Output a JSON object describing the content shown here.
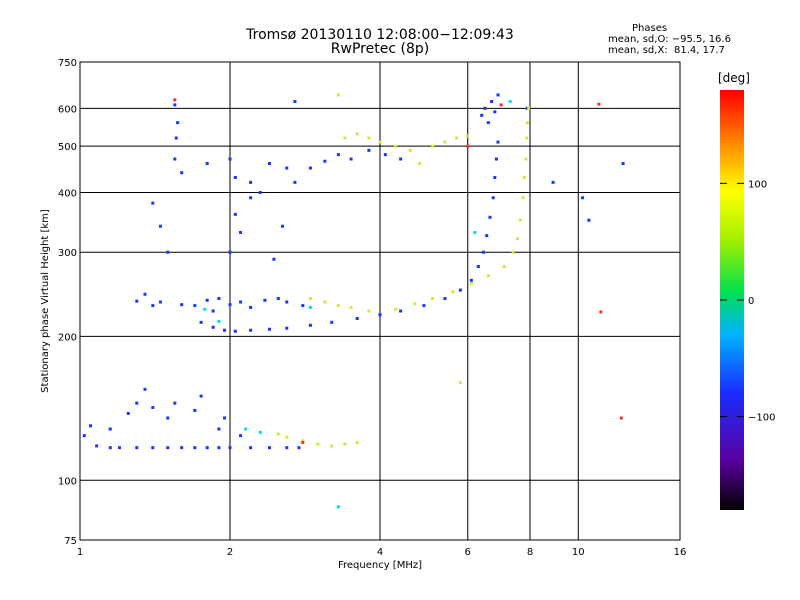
{
  "header": {
    "title_line1": "Tromsø 20130110 12:08:00−12:09:43",
    "title_line2": "RwPretec (8p)"
  },
  "phases": {
    "title": "Phases",
    "line_o": "mean, sd,O: −95.5, 16.6",
    "line_x": "mean, sd,X:  81.4, 17.7"
  },
  "colorbar": {
    "label": "[deg]",
    "ticks": [
      "100",
      "0",
      "−100"
    ],
    "tick_values": [
      100,
      0,
      -100
    ],
    "range": [
      -180,
      180
    ]
  },
  "chart_data": {
    "type": "scatter",
    "xlabel": "Frequency [MHz]",
    "ylabel": "Stationary phase Virtual Height [km]",
    "x_scale": "log",
    "y_scale": "log",
    "xlim": [
      1,
      16
    ],
    "ylim": [
      75,
      750
    ],
    "x_ticks": [
      1,
      2,
      4,
      6,
      8,
      10,
      16
    ],
    "x_tick_labels": [
      "1",
      "2",
      "4",
      "6",
      "8",
      "10",
      "16"
    ],
    "y_ticks": [
      75,
      100,
      200,
      300,
      400,
      500,
      600,
      750
    ],
    "y_tick_labels": [
      "75",
      "100",
      "200",
      "300",
      "400",
      "500",
      "600",
      "750"
    ],
    "grid": true,
    "series": [
      {
        "color": "#1a35ff",
        "points": [
          [
            1.08,
            118
          ],
          [
            1.15,
            117
          ],
          [
            1.2,
            117
          ],
          [
            1.3,
            117
          ],
          [
            1.4,
            117
          ],
          [
            1.5,
            117
          ],
          [
            1.6,
            117
          ],
          [
            1.7,
            117
          ],
          [
            1.8,
            117
          ],
          [
            1.9,
            117
          ],
          [
            2.0,
            117
          ],
          [
            2.2,
            117
          ],
          [
            2.4,
            117
          ],
          [
            2.6,
            117
          ],
          [
            2.75,
            117
          ],
          [
            1.02,
            124
          ],
          [
            1.05,
            130
          ],
          [
            1.15,
            128
          ],
          [
            1.25,
            138
          ],
          [
            1.3,
            145
          ],
          [
            1.35,
            155
          ],
          [
            1.4,
            142
          ],
          [
            1.5,
            135
          ],
          [
            1.55,
            145
          ],
          [
            1.7,
            140
          ],
          [
            1.75,
            150
          ],
          [
            1.9,
            128
          ],
          [
            1.95,
            135
          ],
          [
            2.1,
            124
          ],
          [
            1.3,
            237
          ],
          [
            1.35,
            245
          ],
          [
            1.4,
            232
          ],
          [
            1.45,
            236
          ],
          [
            1.6,
            233
          ],
          [
            1.7,
            232
          ],
          [
            1.8,
            238
          ],
          [
            1.85,
            226
          ],
          [
            1.9,
            240
          ],
          [
            2.0,
            233
          ],
          [
            2.1,
            236
          ],
          [
            2.2,
            230
          ],
          [
            2.35,
            238
          ],
          [
            2.5,
            240
          ],
          [
            2.6,
            236
          ],
          [
            2.8,
            232
          ],
          [
            1.75,
            214
          ],
          [
            1.85,
            209
          ],
          [
            1.95,
            206
          ],
          [
            2.05,
            205
          ],
          [
            2.2,
            206
          ],
          [
            2.4,
            207
          ],
          [
            2.6,
            208
          ],
          [
            2.9,
            211
          ],
          [
            3.2,
            214
          ],
          [
            3.6,
            218
          ],
          [
            4.0,
            222
          ],
          [
            4.4,
            226
          ],
          [
            4.9,
            232
          ],
          [
            5.4,
            240
          ],
          [
            5.8,
            250
          ],
          [
            6.1,
            262
          ],
          [
            6.3,
            280
          ],
          [
            6.45,
            300
          ],
          [
            6.55,
            325
          ],
          [
            6.65,
            355
          ],
          [
            6.75,
            390
          ],
          [
            6.8,
            430
          ],
          [
            6.85,
            470
          ],
          [
            6.9,
            510
          ],
          [
            1.55,
            470
          ],
          [
            1.56,
            520
          ],
          [
            1.57,
            560
          ],
          [
            1.6,
            440
          ],
          [
            1.8,
            460
          ],
          [
            2.0,
            470
          ],
          [
            2.05,
            430
          ],
          [
            2.2,
            420
          ],
          [
            2.4,
            460
          ],
          [
            2.6,
            450
          ],
          [
            2.7,
            420
          ],
          [
            2.9,
            450
          ],
          [
            3.1,
            465
          ],
          [
            3.3,
            480
          ],
          [
            3.5,
            470
          ],
          [
            3.8,
            490
          ],
          [
            4.1,
            480
          ],
          [
            4.4,
            470
          ],
          [
            2.0,
            300
          ],
          [
            2.05,
            360
          ],
          [
            2.1,
            330
          ],
          [
            2.2,
            390
          ],
          [
            2.3,
            400
          ],
          [
            2.45,
            290
          ],
          [
            2.55,
            340
          ],
          [
            1.4,
            380
          ],
          [
            1.5,
            300
          ],
          [
            1.45,
            340
          ],
          [
            6.4,
            580
          ],
          [
            6.5,
            600
          ],
          [
            6.6,
            560
          ],
          [
            6.7,
            620
          ],
          [
            6.8,
            590
          ],
          [
            6.9,
            640
          ],
          [
            2.7,
            620
          ],
          [
            1.55,
            610
          ],
          [
            7.9,
            600
          ],
          [
            8.9,
            420
          ],
          [
            10.2,
            390
          ],
          [
            10.5,
            350
          ],
          [
            12.3,
            460
          ]
        ]
      },
      {
        "color": "#c8f032",
        "points": [
          [
            3.4,
            520
          ],
          [
            3.6,
            530
          ],
          [
            3.8,
            520
          ],
          [
            4.0,
            510
          ],
          [
            4.3,
            500
          ],
          [
            4.6,
            490
          ],
          [
            5.1,
            500
          ],
          [
            5.4,
            510
          ],
          [
            5.7,
            520
          ],
          [
            6.0,
            525
          ],
          [
            2.9,
            240
          ],
          [
            3.1,
            236
          ],
          [
            3.3,
            232
          ],
          [
            3.5,
            230
          ],
          [
            3.8,
            226
          ],
          [
            4.3,
            228
          ],
          [
            4.7,
            234
          ],
          [
            5.1,
            240
          ],
          [
            5.6,
            248
          ],
          [
            6.1,
            258
          ],
          [
            6.6,
            268
          ],
          [
            7.1,
            280
          ],
          [
            7.4,
            300
          ],
          [
            7.55,
            320
          ],
          [
            7.65,
            350
          ],
          [
            7.75,
            390
          ],
          [
            7.8,
            430
          ],
          [
            7.85,
            470
          ],
          [
            7.88,
            520
          ],
          [
            7.9,
            560
          ],
          [
            7.95,
            600
          ],
          [
            2.5,
            125
          ],
          [
            2.6,
            123
          ],
          [
            2.8,
            121
          ],
          [
            3.0,
            119
          ],
          [
            3.2,
            118
          ],
          [
            3.4,
            119
          ],
          [
            3.6,
            120
          ],
          [
            3.3,
            640
          ],
          [
            4.8,
            460
          ],
          [
            5.8,
            160
          ]
        ]
      },
      {
        "color": "#00e0e0",
        "points": [
          [
            1.78,
            228
          ],
          [
            1.9,
            215
          ],
          [
            2.15,
            128
          ],
          [
            2.3,
            126
          ],
          [
            2.9,
            230
          ],
          [
            3.3,
            88
          ],
          [
            6.2,
            330
          ],
          [
            7.3,
            620
          ]
        ]
      },
      {
        "color": "#ff2a2a",
        "points": [
          [
            1.55,
            625
          ],
          [
            2.8,
            120
          ],
          [
            6.0,
            500
          ],
          [
            7.0,
            610
          ],
          [
            11.0,
            612
          ],
          [
            11.1,
            225
          ],
          [
            12.2,
            135
          ]
        ]
      }
    ]
  }
}
